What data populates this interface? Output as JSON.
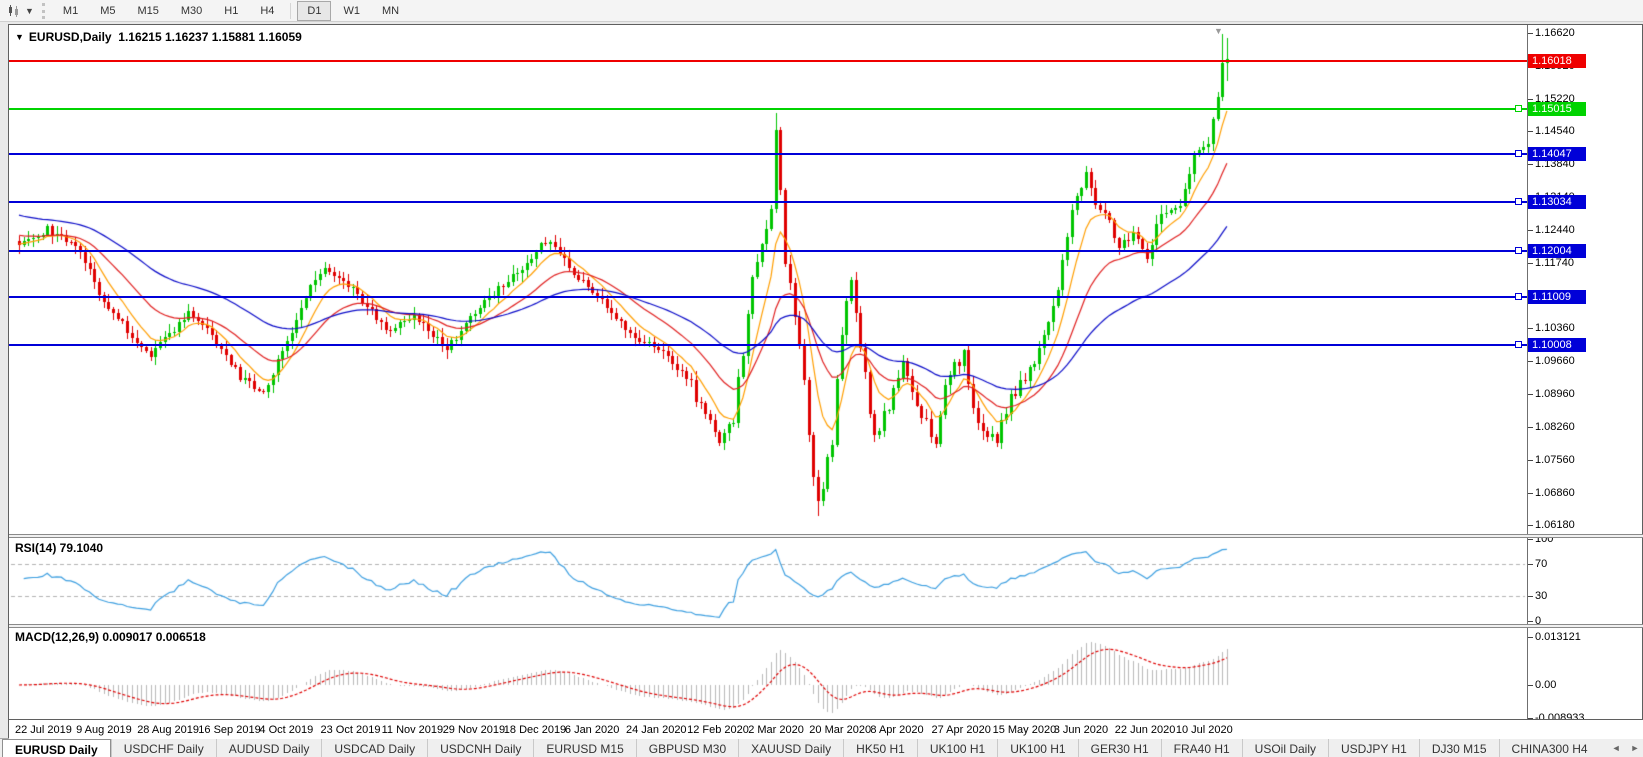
{
  "toolbar": {
    "chart_tools_icon": "candlestick-chart-icon",
    "dropdown_caret": "▼",
    "timeframes": [
      "M1",
      "M5",
      "M15",
      "M30",
      "H1",
      "H4",
      "D1",
      "W1",
      "MN"
    ],
    "active_timeframe": "D1"
  },
  "chart": {
    "title_line": "EURUSD,Daily  1.16215 1.16237 1.15881 1.16059",
    "symbol": "EURUSD",
    "period": "Daily"
  },
  "chart_data": {
    "type": "candlestick",
    "symbol": "EURUSD",
    "timeframe": "Daily",
    "ohlc_display": {
      "open": 1.16215,
      "high": 1.16237,
      "low": 1.15881,
      "close": 1.16059
    },
    "x_labels": [
      "22 Jul 2019",
      "9 Aug 2019",
      "28 Aug 2019",
      "16 Sep 2019",
      "4 Oct 2019",
      "23 Oct 2019",
      "11 Nov 2019",
      "29 Nov 2019",
      "18 Dec 2019",
      "6 Jan 2020",
      "24 Jan 2020",
      "12 Feb 2020",
      "2 Mar 2020",
      "20 Mar 2020",
      "8 Apr 2020",
      "27 Apr 2020",
      "15 May 2020",
      "3 Jun 2020",
      "22 Jun 2020",
      "10 Jul 2020"
    ],
    "candles_per_label": 13,
    "candle_count": 258,
    "y_ticks": [
      "1.16620",
      "1.15920",
      "1.15220",
      "1.14540",
      "1.13840",
      "1.13140",
      "1.12440",
      "1.11740",
      "1.11040",
      "1.10360",
      "1.09660",
      "1.08960",
      "1.08260",
      "1.07560",
      "1.06860",
      "1.06180"
    ],
    "y_range": [
      1.0618,
      1.1662
    ],
    "levels": [
      {
        "price": "1.16018",
        "value": 1.16018,
        "color": "#ef0000",
        "handle": false
      },
      {
        "price": "1.15015",
        "value": 1.15015,
        "color": "#00d300",
        "handle": true
      },
      {
        "price": "1.14047",
        "value": 1.14047,
        "color": "#0000d8",
        "handle": true
      },
      {
        "price": "1.13034",
        "value": 1.13034,
        "color": "#0000d8",
        "handle": true
      },
      {
        "price": "1.12004",
        "value": 1.12004,
        "color": "#0000d8",
        "handle": true
      },
      {
        "price": "1.11009",
        "value": 1.11009,
        "color": "#0000d8",
        "handle": true
      },
      {
        "price": "1.10008",
        "value": 1.10008,
        "color": "#0000d8",
        "handle": true
      }
    ],
    "price_anchors": [
      [
        0,
        1.121
      ],
      [
        6,
        1.1245
      ],
      [
        13,
        1.1205
      ],
      [
        18,
        1.109
      ],
      [
        28,
        1.0975
      ],
      [
        36,
        1.107
      ],
      [
        40,
        1.1035
      ],
      [
        47,
        1.093
      ],
      [
        52,
        1.0895
      ],
      [
        56,
        1.0985
      ],
      [
        62,
        1.1125
      ],
      [
        65,
        1.1155
      ],
      [
        72,
        1.111
      ],
      [
        78,
        1.103
      ],
      [
        84,
        1.1065
      ],
      [
        91,
        1.099
      ],
      [
        98,
        1.1085
      ],
      [
        104,
        1.1135
      ],
      [
        110,
        1.12
      ],
      [
        113,
        1.1225
      ],
      [
        117,
        1.116
      ],
      [
        123,
        1.1105
      ],
      [
        130,
        1.1025
      ],
      [
        137,
        1.098
      ],
      [
        143,
        1.0915
      ],
      [
        149,
        1.079
      ],
      [
        152,
        1.0845
      ],
      [
        156,
        1.1135
      ],
      [
        160,
        1.128
      ],
      [
        161,
        1.1455
      ],
      [
        163,
        1.118
      ],
      [
        165,
        1.1065
      ],
      [
        167,
        1.092
      ],
      [
        169,
        1.072
      ],
      [
        170,
        1.0655
      ],
      [
        173,
        1.08
      ],
      [
        175,
        1.103
      ],
      [
        177,
        1.114
      ],
      [
        180,
        1.093
      ],
      [
        182,
        1.08
      ],
      [
        185,
        1.087
      ],
      [
        188,
        1.097
      ],
      [
        191,
        1.086
      ],
      [
        195,
        1.08
      ],
      [
        198,
        1.095
      ],
      [
        201,
        1.098
      ],
      [
        204,
        1.083
      ],
      [
        208,
        1.08
      ],
      [
        211,
        1.09
      ],
      [
        214,
        1.092
      ],
      [
        217,
        1.099
      ],
      [
        221,
        1.112
      ],
      [
        224,
        1.129
      ],
      [
        227,
        1.136
      ],
      [
        229,
        1.13
      ],
      [
        232,
        1.126
      ],
      [
        234,
        1.1205
      ],
      [
        237,
        1.124
      ],
      [
        240,
        1.119
      ],
      [
        243,
        1.128
      ],
      [
        247,
        1.13
      ],
      [
        250,
        1.14
      ],
      [
        253,
        1.143
      ],
      [
        255,
        1.153
      ],
      [
        256,
        1.16
      ],
      [
        257,
        1.1606
      ]
    ],
    "colors": {
      "candle_up": "#00c400",
      "candle_down": "#df0000",
      "ma_fast": "#ff9e00",
      "ma_mid": "#e02020",
      "ma_slow": "#0a0ac8",
      "rsi_line": "#3d9fe0",
      "macd_histogram": "#b9b9b9",
      "macd_signal": "#df0000"
    },
    "moving_averages": [
      {
        "name": "fast-ma-orange",
        "period": 8
      },
      {
        "name": "mid-ma-red",
        "period": 21
      },
      {
        "name": "slow-ma-blue",
        "period": 50
      }
    ],
    "rsi": {
      "label": "RSI(14) 79.1040",
      "period": 14,
      "current": 79.104,
      "ticks": [
        "100",
        "70",
        "30",
        "0"
      ],
      "guides": [
        70,
        30
      ]
    },
    "macd": {
      "label": "MACD(12,26,9) 0.009017 0.006518",
      "fast": 12,
      "slow": 26,
      "signal": 9,
      "current_macd": 0.009017,
      "current_signal": 0.006518,
      "ticks": [
        "0.013121",
        "0.00",
        "-0.008933"
      ]
    }
  },
  "tabs": {
    "items": [
      "EURUSD Daily",
      "USDCHF Daily",
      "AUDUSD Daily",
      "USDCAD Daily",
      "USDCNH Daily",
      "EURUSD M15",
      "GBPUSD M30",
      "XAUUSD Daily",
      "HK50 H1",
      "UK100 H1",
      "UK100 H1",
      "GER30 H1",
      "FRA40 H1",
      "USOil Daily",
      "USDJPY H1",
      "DJ30 M15",
      "CHINA300 H4"
    ],
    "active": "EURUSD Daily",
    "scroll_left": "◄",
    "scroll_right": "►"
  }
}
